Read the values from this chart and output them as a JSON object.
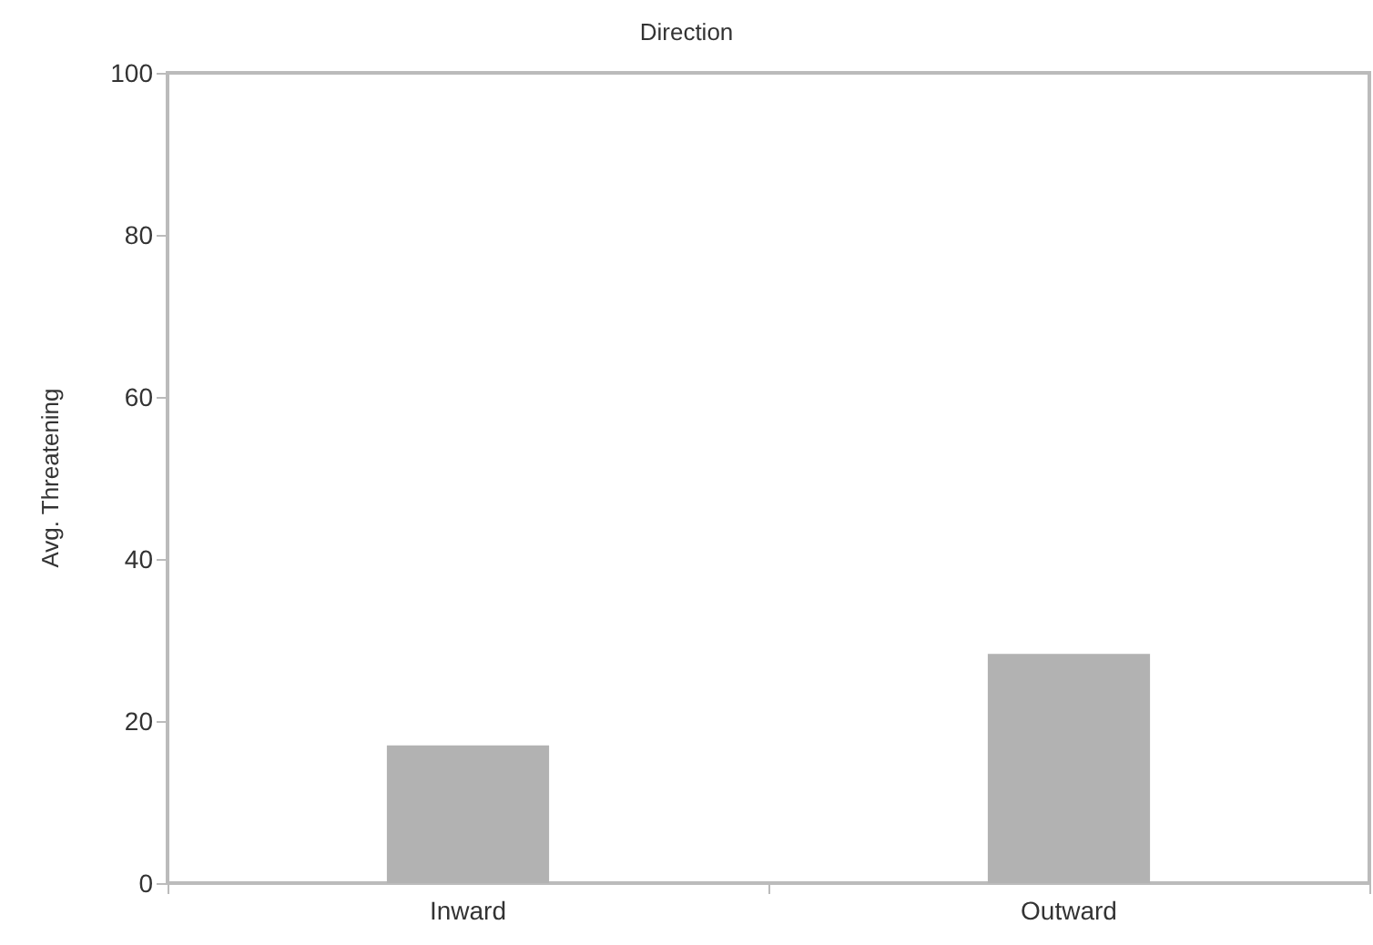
{
  "chart_data": {
    "type": "bar",
    "title": "Direction",
    "ylabel": "Avg. Threatening",
    "categories": [
      "Inward",
      "Outward"
    ],
    "values": [
      17,
      28.3
    ],
    "color": "#b2b2b2",
    "ylim": [
      0,
      100
    ],
    "yticks": [
      0,
      20,
      40,
      60,
      80,
      100
    ],
    "grid": false
  }
}
